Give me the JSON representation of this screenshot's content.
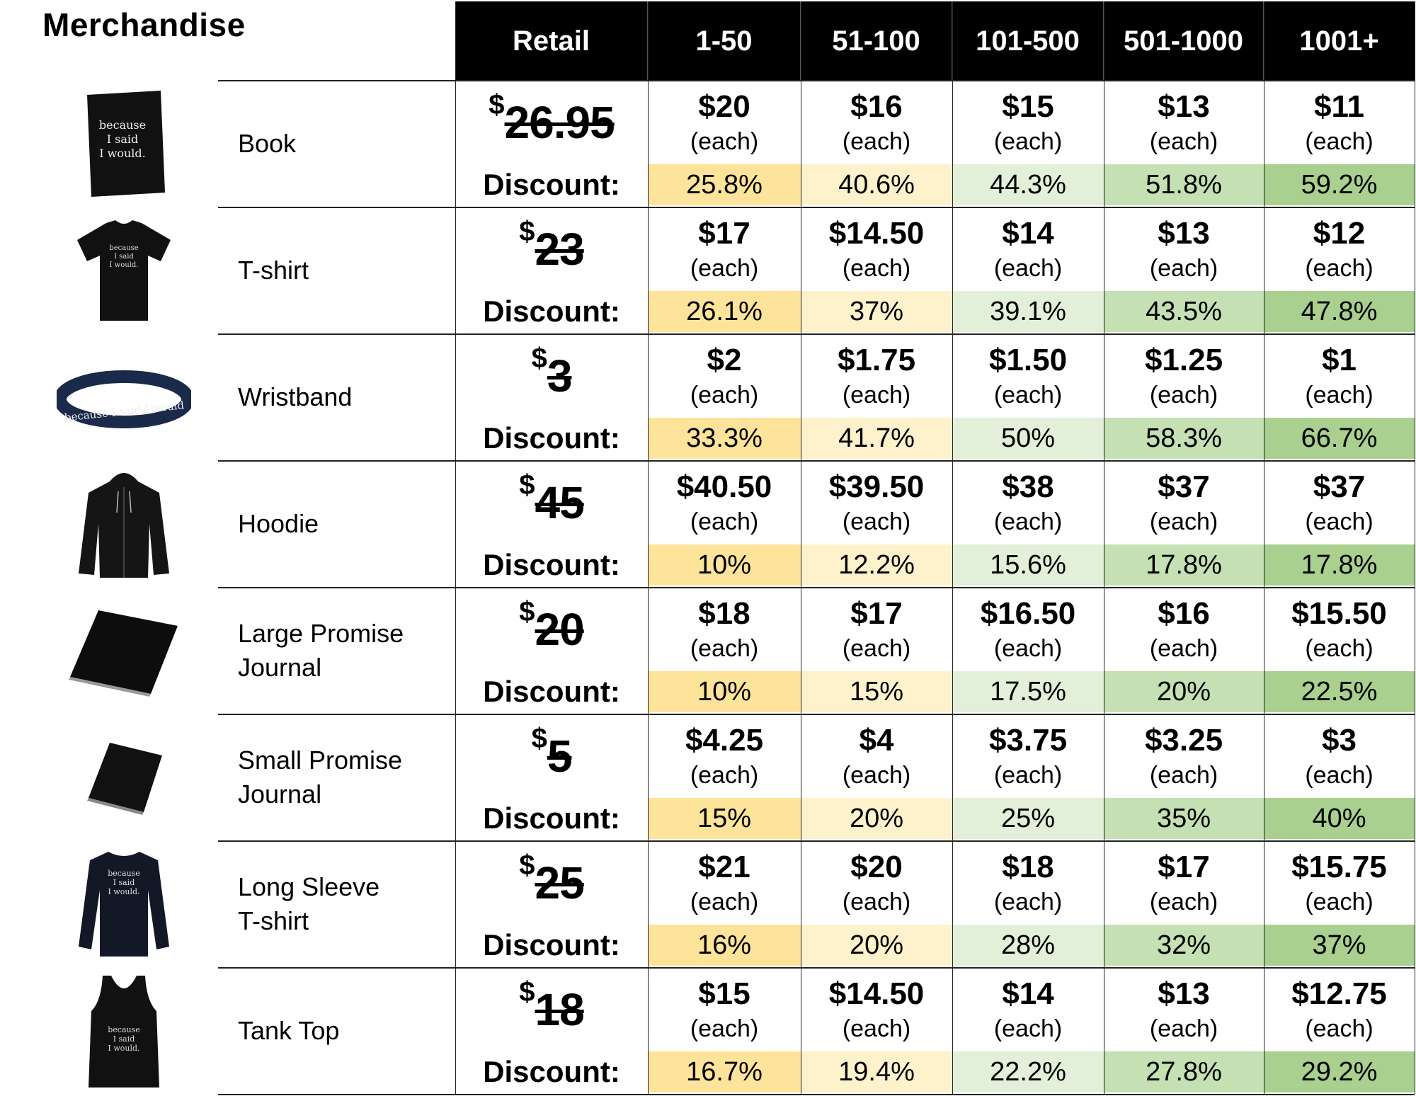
{
  "title": "Merchandise",
  "columns": {
    "retail": "Retail",
    "tiers": [
      "1-50",
      "51-100",
      "101-500",
      "501-1000",
      "1001+"
    ]
  },
  "labels": {
    "discount": "Discount:",
    "each": "(each)",
    "currency": "$"
  },
  "tier_colors": [
    "#fde49a",
    "#fef2cc",
    "#e2efd9",
    "#c5e0b3",
    "#a9d08e"
  ],
  "products": [
    {
      "name": "Book",
      "icon": "book-icon",
      "retail": "26.95",
      "prices": [
        "$20",
        "$16",
        "$15",
        "$13",
        "$11"
      ],
      "discounts": [
        "25.8%",
        "40.6%",
        "44.3%",
        "51.8%",
        "59.2%"
      ]
    },
    {
      "name": "T-shirt",
      "icon": "tshirt-icon",
      "retail": "23",
      "prices": [
        "$17",
        "$14.50",
        "$14",
        "$13",
        "$12"
      ],
      "discounts": [
        "26.1%",
        "37%",
        "39.1%",
        "43.5%",
        "47.8%"
      ]
    },
    {
      "name": "Wristband",
      "icon": "wristband-icon",
      "retail": "3",
      "prices": [
        "$2",
        "$1.75",
        "$1.50",
        "$1.25",
        "$1"
      ],
      "discounts": [
        "33.3%",
        "41.7%",
        "50%",
        "58.3%",
        "66.7%"
      ]
    },
    {
      "name": "Hoodie",
      "icon": "hoodie-icon",
      "retail": "45",
      "prices": [
        "$40.50",
        "$39.50",
        "$38",
        "$37",
        "$37"
      ],
      "discounts": [
        "10%",
        "12.2%",
        "15.6%",
        "17.8%",
        "17.8%"
      ]
    },
    {
      "name": "Large Promise\nJournal",
      "icon": "large-journal-icon",
      "retail": "20",
      "prices": [
        "$18",
        "$17",
        "$16.50",
        "$16",
        "$15.50"
      ],
      "discounts": [
        "10%",
        "15%",
        "17.5%",
        "20%",
        "22.5%"
      ]
    },
    {
      "name": "Small Promise\nJournal",
      "icon": "small-journal-icon",
      "retail": "5",
      "prices": [
        "$4.25",
        "$4",
        "$3.75",
        "$3.25",
        "$3"
      ],
      "discounts": [
        "15%",
        "20%",
        "25%",
        "35%",
        "40%"
      ]
    },
    {
      "name": "Long Sleeve\nT-shirt",
      "icon": "long-sleeve-icon",
      "retail": "25",
      "prices": [
        "$21",
        "$20",
        "$18",
        "$17",
        "$15.75"
      ],
      "discounts": [
        "16%",
        "20%",
        "28%",
        "32%",
        "37%"
      ]
    },
    {
      "name": "Tank Top",
      "icon": "tank-top-icon",
      "retail": "18",
      "prices": [
        "$15",
        "$14.50",
        "$14",
        "$13",
        "$12.75"
      ],
      "discounts": [
        "16.7%",
        "19.4%",
        "22.2%",
        "27.8%",
        "29.2%"
      ]
    }
  ],
  "product_print": {
    "book": [
      "because",
      "I said",
      "I would."
    ],
    "wristband": "because I said I would"
  }
}
